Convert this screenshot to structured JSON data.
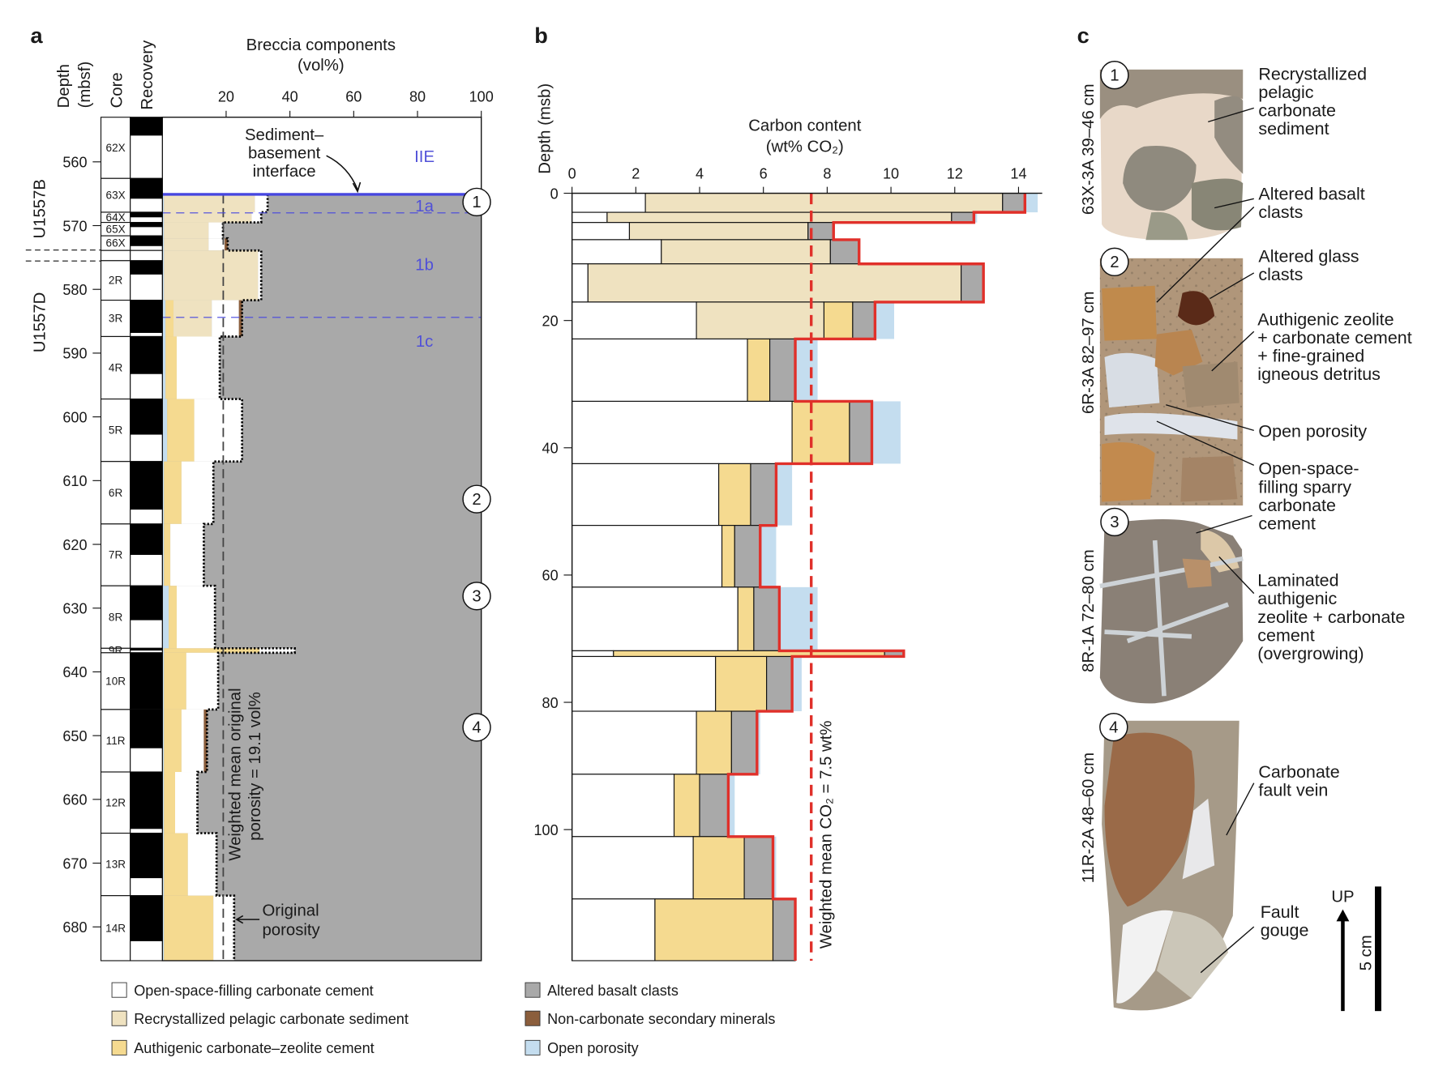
{
  "colors": {
    "open_space_cement": "#ffffff",
    "recrystallized_sediment": "#efe2c0",
    "authigenic_cement": "#f5da90",
    "altered_basalt": "#a9a9a9",
    "non_carbonate": "#8b5e3c",
    "open_porosity": "#c4ddef",
    "carbon_total_line": "#e0302a",
    "interface_line": "#4646e0"
  },
  "panel_labels": {
    "a": "a",
    "b": "b",
    "c": "c"
  },
  "chart_data": [
    {
      "panel": "a",
      "type": "area",
      "title": "Breccia components (vol%)",
      "title_line1": "Breccia components",
      "title_line2": "(vol%)",
      "xlim": [
        0,
        100
      ],
      "xticks": [
        20,
        40,
        60,
        80,
        100
      ],
      "ylabel_line1": "Depth",
      "ylabel_line2": "(mbsf)",
      "ylim": [
        553,
        685.3
      ],
      "yticks": [
        560,
        570,
        580,
        590,
        600,
        610,
        620,
        630,
        640,
        650,
        660,
        670,
        680
      ],
      "column_headers": {
        "core": "Core",
        "recovery": "Recovery"
      },
      "holes": [
        {
          "name": "U1557B",
          "center_depth": 566
        },
        {
          "name": "U1557D",
          "center_depth": 583
        }
      ],
      "cores": [
        {
          "name": "62X",
          "top": 553.0,
          "bottom": 562.6,
          "recovered_fraction": 0.3
        },
        {
          "name": "63X",
          "top": 562.6,
          "bottom": 567.9,
          "recovered_fraction": 0.6
        },
        {
          "name": "64X",
          "top": 567.9,
          "bottom": 569.5,
          "recovered_fraction": 0.5
        },
        {
          "name": "65X",
          "top": 569.5,
          "bottom": 571.6,
          "recovered_fraction": 0.35
        },
        {
          "name": "66X",
          "top": 571.6,
          "bottom": 573.9,
          "recovered_fraction": 0.7
        },
        {
          "name": "",
          "top": 573.9,
          "bottom": 575.5,
          "recovered_fraction": 0
        },
        {
          "name": "2R",
          "top": 575.5,
          "bottom": 581.7,
          "recovered_fraction": 0.35
        },
        {
          "name": "3R",
          "top": 581.7,
          "bottom": 587.4,
          "recovered_fraction": 0.9
        },
        {
          "name": "4R",
          "top": 587.4,
          "bottom": 597.2,
          "recovered_fraction": 0.6
        },
        {
          "name": "5R",
          "top": 597.2,
          "bottom": 607.0,
          "recovered_fraction": 0.57
        },
        {
          "name": "6R",
          "top": 607.0,
          "bottom": 616.8,
          "recovered_fraction": 0.77
        },
        {
          "name": "7R",
          "top": 616.8,
          "bottom": 626.5,
          "recovered_fraction": 0.5
        },
        {
          "name": "8R",
          "top": 626.5,
          "bottom": 636.3,
          "recovered_fraction": 0.55
        },
        {
          "name": "9R",
          "top": 636.3,
          "bottom": 637.0,
          "recovered_fraction": 0.5
        },
        {
          "name": "10R",
          "top": 637.0,
          "bottom": 645.9,
          "recovered_fraction": 1.0
        },
        {
          "name": "11R",
          "top": 645.9,
          "bottom": 655.7,
          "recovered_fraction": 0.62
        },
        {
          "name": "12R",
          "top": 655.7,
          "bottom": 665.3,
          "recovered_fraction": 0.93
        },
        {
          "name": "13R",
          "top": 665.3,
          "bottom": 675.1,
          "recovered_fraction": 0.72
        },
        {
          "name": "14R",
          "top": 675.1,
          "bottom": 685.3,
          "recovered_fraction": 0.7
        }
      ],
      "intervals": [
        {
          "top": 565.1,
          "bottom": 567.9,
          "open_porosity": 0.5,
          "authigenic": 0,
          "recrystallized": 28.5,
          "open_space_cement": 4,
          "non_carbonate": 0
        },
        {
          "top": 567.9,
          "bottom": 569.5,
          "open_porosity": 0.5,
          "authigenic": 0,
          "recrystallized": 27.5,
          "open_space_cement": 3,
          "non_carbonate": 0
        },
        {
          "top": 569.5,
          "bottom": 572.0,
          "open_porosity": 0.5,
          "authigenic": 0,
          "recrystallized": 14,
          "open_space_cement": 4.5,
          "non_carbonate": 0
        },
        {
          "top": 572.0,
          "bottom": 573.9,
          "open_porosity": 0.5,
          "authigenic": 0,
          "recrystallized": 14,
          "open_space_cement": 5,
          "non_carbonate": 1
        },
        {
          "top": 573.9,
          "bottom": 581.7,
          "open_porosity": 0.5,
          "authigenic": 0,
          "recrystallized": 29.5,
          "open_space_cement": 1,
          "non_carbonate": 0
        },
        {
          "top": 581.7,
          "bottom": 587.4,
          "open_porosity": 1,
          "authigenic": 2.5,
          "recrystallized": 12,
          "open_space_cement": 8.5,
          "non_carbonate": 1
        },
        {
          "top": 587.4,
          "bottom": 597.2,
          "open_porosity": 1,
          "authigenic": 3.5,
          "recrystallized": 0,
          "open_space_cement": 13.5,
          "non_carbonate": 0
        },
        {
          "top": 597.2,
          "bottom": 607.0,
          "open_porosity": 1.5,
          "authigenic": 8.5,
          "recrystallized": 0,
          "open_space_cement": 15,
          "non_carbonate": 0
        },
        {
          "top": 607.0,
          "bottom": 616.8,
          "open_porosity": 0.5,
          "authigenic": 5.5,
          "recrystallized": 0,
          "open_space_cement": 10,
          "non_carbonate": 0
        },
        {
          "top": 616.8,
          "bottom": 626.5,
          "open_porosity": 0.5,
          "authigenic": 2,
          "recrystallized": 0,
          "open_space_cement": 10.5,
          "non_carbonate": 0
        },
        {
          "top": 626.5,
          "bottom": 636.3,
          "open_porosity": 2,
          "authigenic": 2.5,
          "recrystallized": 0,
          "open_space_cement": 12,
          "non_carbonate": 0
        },
        {
          "top": 636.3,
          "bottom": 637.0,
          "open_porosity": 0.5,
          "authigenic": 30,
          "recrystallized": 0,
          "open_space_cement": 11,
          "non_carbonate": 0
        },
        {
          "top": 637.0,
          "bottom": 645.9,
          "open_porosity": 0.5,
          "authigenic": 7,
          "recrystallized": 0,
          "open_space_cement": 10,
          "non_carbonate": 0
        },
        {
          "top": 645.9,
          "bottom": 655.7,
          "open_porosity": 0.5,
          "authigenic": 5.5,
          "recrystallized": 0,
          "open_space_cement": 7,
          "non_carbonate": 1
        },
        {
          "top": 655.7,
          "bottom": 665.3,
          "open_porosity": 0.5,
          "authigenic": 3.5,
          "recrystallized": 0,
          "open_space_cement": 7,
          "non_carbonate": 0
        },
        {
          "top": 665.3,
          "bottom": 675.1,
          "open_porosity": 0.5,
          "authigenic": 7.5,
          "recrystallized": 0,
          "open_space_cement": 9,
          "non_carbonate": 0
        },
        {
          "top": 675.1,
          "bottom": 685.3,
          "open_porosity": 0.5,
          "authigenic": 15.5,
          "recrystallized": 0,
          "open_space_cement": 6.5,
          "non_carbonate": 0
        }
      ],
      "interface_depth": 565.1,
      "unit_boundaries": [
        568.0,
        584.4
      ],
      "units": [
        {
          "name": "IIE",
          "depth": 559
        },
        {
          "name": "1a",
          "depth": 566.8
        },
        {
          "name": "1b",
          "depth": 576
        },
        {
          "name": "1c",
          "depth": 588
        }
      ],
      "sample_markers": [
        {
          "label": "1",
          "depth": 566.3
        },
        {
          "label": "2",
          "depth": 612.9
        },
        {
          "label": "3",
          "depth": 628.1
        },
        {
          "label": "4",
          "depth": 648.7
        }
      ],
      "weighted_mean_porosity": 19.1,
      "annotations": {
        "interface_line1": "Sediment–",
        "interface_line2": "basement",
        "interface_line3": "interface",
        "mean_line1": "Weighted mean original",
        "mean_line2": "porosity = 19.1 vol%",
        "orig_line1": "Original",
        "orig_line2": "porosity"
      }
    },
    {
      "panel": "b",
      "type": "bar",
      "title_line1": "Carbon content",
      "title_line2": "(wt% CO₂)",
      "xlim": [
        0,
        14.8
      ],
      "xticks": [
        0,
        2,
        4,
        6,
        8,
        10,
        12,
        14
      ],
      "ylabel": "Depth (msb)",
      "ylim": [
        0,
        120.6
      ],
      "yticks": [
        0,
        20,
        40,
        60,
        80,
        100
      ],
      "intervals": [
        {
          "top": 0,
          "bottom": 3.0,
          "open_space_cement": 2.3,
          "recrystallized": 11.2,
          "authigenic": 0,
          "altered_basalt": 0.7,
          "open_porosity": 0.4
        },
        {
          "top": 3.0,
          "bottom": 4.6,
          "open_space_cement": 1.1,
          "recrystallized": 10.8,
          "authigenic": 0,
          "altered_basalt": 0.7,
          "open_porosity": 0.1
        },
        {
          "top": 4.6,
          "bottom": 7.3,
          "open_space_cement": 1.8,
          "recrystallized": 5.6,
          "authigenic": 0,
          "altered_basalt": 0.8,
          "open_porosity": 0
        },
        {
          "top": 7.3,
          "bottom": 11.1,
          "open_space_cement": 2.8,
          "recrystallized": 5.3,
          "authigenic": 0,
          "altered_basalt": 0.9,
          "open_porosity": 0
        },
        {
          "top": 11.1,
          "bottom": 17.1,
          "open_space_cement": 0.5,
          "recrystallized": 11.7,
          "authigenic": 0,
          "altered_basalt": 0.7,
          "open_porosity": 0
        },
        {
          "top": 17.1,
          "bottom": 22.9,
          "open_space_cement": 3.9,
          "recrystallized": 4.0,
          "authigenic": 0.9,
          "altered_basalt": 0.7,
          "open_porosity": 0.6
        },
        {
          "top": 22.9,
          "bottom": 32.7,
          "open_space_cement": 5.5,
          "recrystallized": 0,
          "authigenic": 0.7,
          "altered_basalt": 0.8,
          "open_porosity": 0.7
        },
        {
          "top": 32.7,
          "bottom": 42.5,
          "open_space_cement": 6.9,
          "recrystallized": 0,
          "authigenic": 1.8,
          "altered_basalt": 0.7,
          "open_porosity": 0.9
        },
        {
          "top": 42.5,
          "bottom": 52.2,
          "open_space_cement": 4.6,
          "recrystallized": 0,
          "authigenic": 1.0,
          "altered_basalt": 0.8,
          "open_porosity": 0.5
        },
        {
          "top": 52.2,
          "bottom": 61.9,
          "open_space_cement": 4.7,
          "recrystallized": 0,
          "authigenic": 0.4,
          "altered_basalt": 0.8,
          "open_porosity": 0.5
        },
        {
          "top": 61.9,
          "bottom": 71.9,
          "open_space_cement": 5.2,
          "recrystallized": 0,
          "authigenic": 0.5,
          "altered_basalt": 0.8,
          "open_porosity": 1.2
        },
        {
          "top": 71.9,
          "bottom": 72.8,
          "open_space_cement": 1.3,
          "recrystallized": 0,
          "authigenic": 8.5,
          "altered_basalt": 0.6,
          "open_porosity": 0
        },
        {
          "top": 72.8,
          "bottom": 81.4,
          "open_space_cement": 4.5,
          "recrystallized": 0,
          "authigenic": 1.6,
          "altered_basalt": 0.8,
          "open_porosity": 0.3
        },
        {
          "top": 81.4,
          "bottom": 91.3,
          "open_space_cement": 3.9,
          "recrystallized": 0,
          "authigenic": 1.1,
          "altered_basalt": 0.8,
          "open_porosity": 0.1
        },
        {
          "top": 91.3,
          "bottom": 101.1,
          "open_space_cement": 3.2,
          "recrystallized": 0,
          "authigenic": 0.8,
          "altered_basalt": 0.9,
          "open_porosity": 0.2
        },
        {
          "top": 101.1,
          "bottom": 110.9,
          "open_space_cement": 3.8,
          "recrystallized": 0,
          "authigenic": 1.6,
          "altered_basalt": 0.9,
          "open_porosity": 0.1
        },
        {
          "top": 110.9,
          "bottom": 120.6,
          "open_space_cement": 2.6,
          "recrystallized": 0,
          "authigenic": 3.7,
          "altered_basalt": 0.7,
          "open_porosity": 0
        }
      ],
      "weighted_mean_co2": 7.5,
      "mean_label": "Weighted mean CO₂ = 7.5 wt%"
    }
  ],
  "legend": [
    {
      "key": "open_space_cement",
      "label": "Open-space-filling carbonate cement"
    },
    {
      "key": "recrystallized_sediment",
      "label": "Recrystallized pelagic carbonate sediment"
    },
    {
      "key": "authigenic_cement",
      "label": "Authigenic carbonate–zeolite cement"
    },
    {
      "key": "altered_basalt",
      "label": "Altered basalt clasts"
    },
    {
      "key": "non_carbonate",
      "label": "Non-carbonate secondary minerals"
    },
    {
      "key": "open_porosity",
      "label": "Open porosity"
    }
  ],
  "photos": [
    {
      "marker": "1",
      "sample": "63X-3A 39–46 cm"
    },
    {
      "marker": "2",
      "sample": "6R-3A 82–97 cm"
    },
    {
      "marker": "3",
      "sample": "8R-1A 72–80 cm"
    },
    {
      "marker": "4",
      "sample": "11R-2A 48–60 cm"
    }
  ],
  "photo_annotations": {
    "recryst": [
      "Recrystallized",
      "pelagic",
      "carbonate",
      "sediment"
    ],
    "basalt": [
      "Altered basalt",
      "clasts"
    ],
    "glass": [
      "Altered glass",
      "clasts"
    ],
    "zeolite": [
      "Authigenic zeolite",
      "+ carbonate cement",
      "+ fine-grained",
      "igneous detritus"
    ],
    "porosity": [
      "Open porosity"
    ],
    "sparry": [
      "Open-space-",
      "filling sparry",
      "carbonate",
      "cement"
    ],
    "laminated": [
      "Laminated",
      "authigenic",
      "zeolite + carbonate",
      "cement",
      "(overgrowing)"
    ],
    "vein": [
      "Carbonate",
      "fault vein"
    ],
    "gouge": [
      "Fault",
      "gouge"
    ]
  },
  "scale": {
    "up_label": "UP",
    "bar_label": "5 cm"
  }
}
